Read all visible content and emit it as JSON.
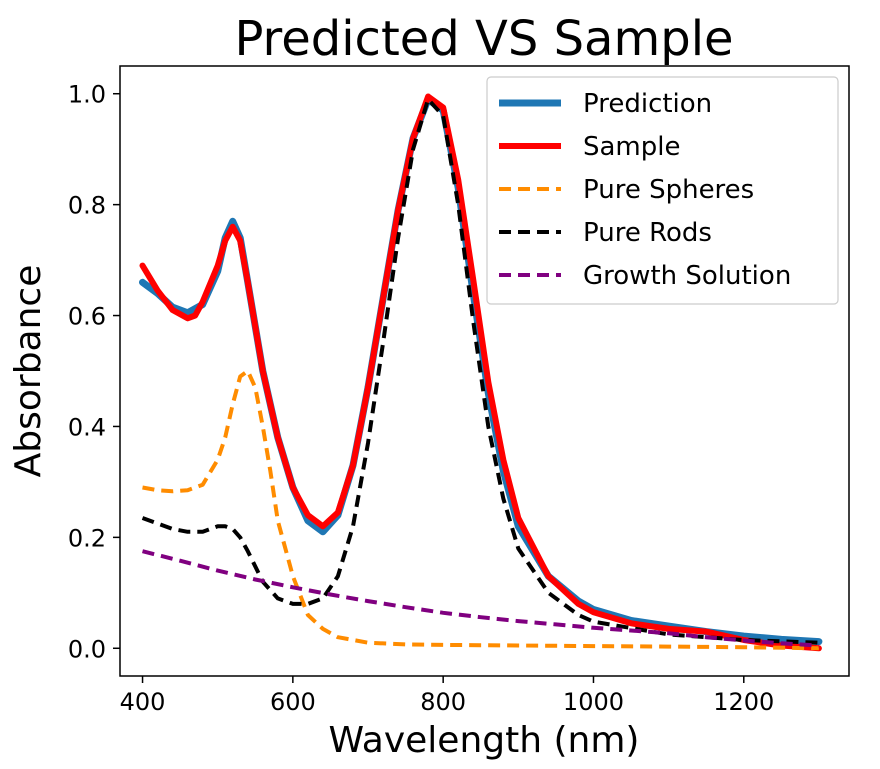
{
  "chart_data": {
    "type": "line",
    "title": "Predicted VS Sample",
    "xlabel": "Wavelength (nm)",
    "ylabel": "Absorbance",
    "xlim": [
      370,
      1340
    ],
    "ylim": [
      -0.05,
      1.05
    ],
    "xticks": [
      {
        "value": 400,
        "label": "400"
      },
      {
        "value": 600,
        "label": "600"
      },
      {
        "value": 800,
        "label": "800"
      },
      {
        "value": 1000,
        "label": "1000"
      },
      {
        "value": 1200,
        "label": "1200"
      }
    ],
    "yticks": [
      {
        "value": 0.0,
        "label": "0.0"
      },
      {
        "value": 0.2,
        "label": "0.2"
      },
      {
        "value": 0.4,
        "label": "0.4"
      },
      {
        "value": 0.6,
        "label": "0.6"
      },
      {
        "value": 0.8,
        "label": "0.8"
      },
      {
        "value": 1.0,
        "label": "1.0"
      }
    ],
    "grid": false,
    "legend_position": "top-right",
    "series": [
      {
        "name": "Prediction",
        "color": "#1f77b4",
        "style": "solid",
        "width": 7,
        "x": [
          400,
          420,
          440,
          460,
          480,
          500,
          510,
          520,
          530,
          540,
          560,
          580,
          600,
          620,
          640,
          660,
          680,
          700,
          720,
          740,
          760,
          780,
          800,
          820,
          840,
          860,
          880,
          900,
          940,
          980,
          1000,
          1050,
          1100,
          1150,
          1200,
          1250,
          1300
        ],
        "y": [
          0.66,
          0.64,
          0.615,
          0.605,
          0.62,
          0.68,
          0.74,
          0.77,
          0.74,
          0.66,
          0.5,
          0.38,
          0.29,
          0.23,
          0.21,
          0.24,
          0.33,
          0.47,
          0.63,
          0.79,
          0.92,
          0.99,
          0.97,
          0.83,
          0.64,
          0.46,
          0.32,
          0.22,
          0.13,
          0.085,
          0.07,
          0.05,
          0.04,
          0.03,
          0.022,
          0.016,
          0.012
        ]
      },
      {
        "name": "Sample",
        "color": "#ff0000",
        "style": "solid",
        "width": 6,
        "x": [
          400,
          420,
          440,
          460,
          470,
          480,
          500,
          510,
          520,
          530,
          540,
          560,
          580,
          600,
          620,
          640,
          660,
          680,
          700,
          720,
          740,
          760,
          780,
          800,
          820,
          840,
          860,
          880,
          900,
          940,
          980,
          1000,
          1050,
          1100,
          1150,
          1200,
          1250,
          1300
        ],
        "y": [
          0.69,
          0.645,
          0.61,
          0.595,
          0.6,
          0.625,
          0.69,
          0.735,
          0.76,
          0.735,
          0.66,
          0.5,
          0.38,
          0.29,
          0.24,
          0.22,
          0.245,
          0.33,
          0.47,
          0.63,
          0.79,
          0.92,
          0.995,
          0.975,
          0.845,
          0.665,
          0.48,
          0.34,
          0.235,
          0.13,
          0.08,
          0.065,
          0.045,
          0.035,
          0.03,
          0.015,
          0.005,
          0.0
        ]
      },
      {
        "name": "Pure Spheres",
        "color": "#ff8c00",
        "style": "dashed",
        "width": 4,
        "x": [
          400,
          420,
          440,
          460,
          480,
          500,
          510,
          520,
          530,
          540,
          550,
          560,
          570,
          580,
          600,
          620,
          640,
          660,
          700,
          750,
          800,
          900,
          1000,
          1100,
          1200,
          1300
        ],
        "y": [
          0.29,
          0.285,
          0.283,
          0.285,
          0.295,
          0.34,
          0.38,
          0.44,
          0.49,
          0.5,
          0.47,
          0.4,
          0.32,
          0.23,
          0.13,
          0.06,
          0.035,
          0.02,
          0.01,
          0.007,
          0.006,
          0.005,
          0.004,
          0.003,
          0.002,
          0.0
        ]
      },
      {
        "name": "Pure Rods",
        "color": "#000000",
        "style": "dashed",
        "width": 4,
        "x": [
          400,
          420,
          440,
          460,
          480,
          500,
          510,
          520,
          530,
          540,
          560,
          580,
          600,
          620,
          640,
          660,
          680,
          700,
          720,
          740,
          760,
          780,
          800,
          820,
          840,
          860,
          880,
          900,
          940,
          980,
          1000,
          1100,
          1200,
          1300
        ],
        "y": [
          0.235,
          0.225,
          0.215,
          0.21,
          0.21,
          0.22,
          0.22,
          0.215,
          0.2,
          0.175,
          0.12,
          0.09,
          0.08,
          0.08,
          0.09,
          0.13,
          0.22,
          0.37,
          0.55,
          0.74,
          0.9,
          0.99,
          0.96,
          0.8,
          0.59,
          0.4,
          0.27,
          0.18,
          0.1,
          0.06,
          0.048,
          0.025,
          0.015,
          0.01
        ]
      },
      {
        "name": "Growth Solution",
        "color": "#800080",
        "style": "dashed",
        "width": 4,
        "x": [
          400,
          450,
          500,
          550,
          600,
          650,
          700,
          750,
          800,
          850,
          900,
          950,
          1000,
          1050,
          1100,
          1150,
          1200,
          1250,
          1300
        ],
        "y": [
          0.175,
          0.158,
          0.14,
          0.124,
          0.11,
          0.097,
          0.085,
          0.074,
          0.064,
          0.056,
          0.049,
          0.043,
          0.037,
          0.032,
          0.027,
          0.02,
          0.014,
          0.009,
          0.005
        ]
      }
    ]
  }
}
